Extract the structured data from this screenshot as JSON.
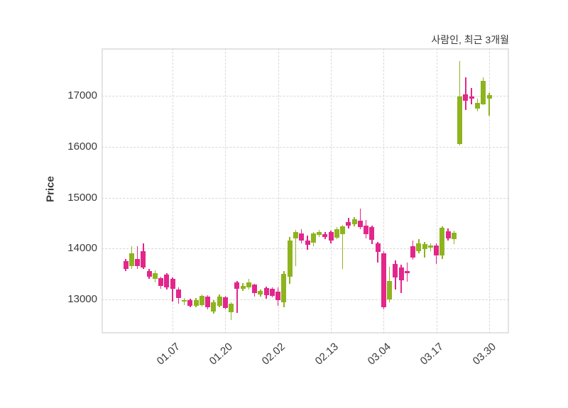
{
  "title": "사람인, 최근 3개월",
  "ylabel": "Price",
  "colors": {
    "up": "#8db41e",
    "down": "#e3268b",
    "grid": "#d9d9d9",
    "frame": "#e3e3e3",
    "text": "#3b3b3b",
    "background": "#ffffff"
  },
  "chart_data": {
    "type": "candlestick",
    "title": "사람인, 최근 3개월",
    "ylabel": "Price",
    "legend": "none",
    "grid": "dashed",
    "ylim": [
      12330,
      17935
    ],
    "y_ticks": [
      13000,
      14000,
      15000,
      16000,
      17000
    ],
    "x_ticks": [
      {
        "index": 8,
        "label": "01.07"
      },
      {
        "index": 17,
        "label": "01.20"
      },
      {
        "index": 26,
        "label": "02.02"
      },
      {
        "index": 35,
        "label": "02.13"
      },
      {
        "index": 44,
        "label": "03.04"
      },
      {
        "index": 53,
        "label": "03.17"
      },
      {
        "index": 62,
        "label": "03.30"
      }
    ],
    "ohlc_order": [
      "open",
      "high",
      "low",
      "close"
    ],
    "up_means": "close > open (green)",
    "down_means": "close < open (pink)",
    "candles": [
      [
        13750,
        13800,
        13550,
        13600
      ],
      [
        13650,
        14050,
        13600,
        13900
      ],
      [
        13800,
        14050,
        13600,
        13650
      ],
      [
        13950,
        14100,
        13600,
        13630
      ],
      [
        13550,
        13600,
        13400,
        13450
      ],
      [
        13400,
        13570,
        13330,
        13520
      ],
      [
        13420,
        13450,
        13210,
        13260
      ],
      [
        13490,
        13520,
        13200,
        13240
      ],
      [
        13400,
        13430,
        12960,
        13210
      ],
      [
        13190,
        13230,
        12910,
        13030
      ],
      [
        12960,
        13030,
        12890,
        12990
      ],
      [
        12990,
        13020,
        12840,
        12880
      ],
      [
        12880,
        13030,
        12850,
        12990
      ],
      [
        12890,
        13100,
        12860,
        13070
      ],
      [
        13050,
        13080,
        12800,
        12840
      ],
      [
        12760,
        12980,
        12720,
        12950
      ],
      [
        12870,
        13090,
        12850,
        13050
      ],
      [
        13040,
        13070,
        12800,
        12830
      ],
      [
        12750,
        12940,
        12590,
        12910
      ],
      [
        13330,
        13360,
        12730,
        13210
      ],
      [
        13210,
        13320,
        13170,
        13270
      ],
      [
        13240,
        13410,
        13200,
        13330
      ],
      [
        13290,
        13310,
        13050,
        13120
      ],
      [
        13090,
        13200,
        13050,
        13160
      ],
      [
        13220,
        13250,
        13010,
        13080
      ],
      [
        13210,
        13240,
        13040,
        13070
      ],
      [
        13150,
        13230,
        12880,
        12980
      ],
      [
        12950,
        13560,
        12850,
        13500
      ],
      [
        13450,
        14220,
        13300,
        14150
      ],
      [
        14200,
        14370,
        13650,
        14330
      ],
      [
        14290,
        14380,
        14100,
        14150
      ],
      [
        14160,
        14260,
        13980,
        14070
      ],
      [
        14110,
        14330,
        14050,
        14290
      ],
      [
        14270,
        14360,
        14220,
        14330
      ],
      [
        14280,
        14330,
        14180,
        14230
      ],
      [
        14320,
        14350,
        14100,
        14150
      ],
      [
        14210,
        14420,
        14180,
        14380
      ],
      [
        14280,
        14470,
        13600,
        14440
      ],
      [
        14520,
        14600,
        14400,
        14450
      ],
      [
        14480,
        14620,
        14440,
        14580
      ],
      [
        14550,
        14780,
        14380,
        14420
      ],
      [
        14450,
        14560,
        14200,
        14280
      ],
      [
        14420,
        14450,
        14080,
        14170
      ],
      [
        14100,
        14130,
        13730,
        13930
      ],
      [
        13900,
        13950,
        12800,
        12850
      ],
      [
        13000,
        13640,
        12950,
        13360
      ],
      [
        13700,
        13760,
        13200,
        13430
      ],
      [
        13630,
        13680,
        13120,
        13370
      ],
      [
        13560,
        13730,
        13350,
        13520
      ],
      [
        14040,
        14160,
        13780,
        13820
      ],
      [
        13950,
        14190,
        13900,
        14100
      ],
      [
        13990,
        14130,
        13820,
        14080
      ],
      [
        14020,
        14100,
        13950,
        14060
      ],
      [
        14060,
        14100,
        13700,
        13860
      ],
      [
        13860,
        14440,
        13800,
        14410
      ],
      [
        14340,
        14400,
        14150,
        14200
      ],
      [
        14190,
        14350,
        14090,
        14310
      ],
      [
        16050,
        17680,
        16030,
        16980
      ],
      [
        17030,
        17370,
        16720,
        16900
      ],
      [
        16990,
        17160,
        16840,
        16940
      ],
      [
        16750,
        16940,
        16700,
        16860
      ],
      [
        16840,
        17360,
        16820,
        17300
      ],
      [
        16950,
        17050,
        16610,
        17020
      ]
    ]
  }
}
